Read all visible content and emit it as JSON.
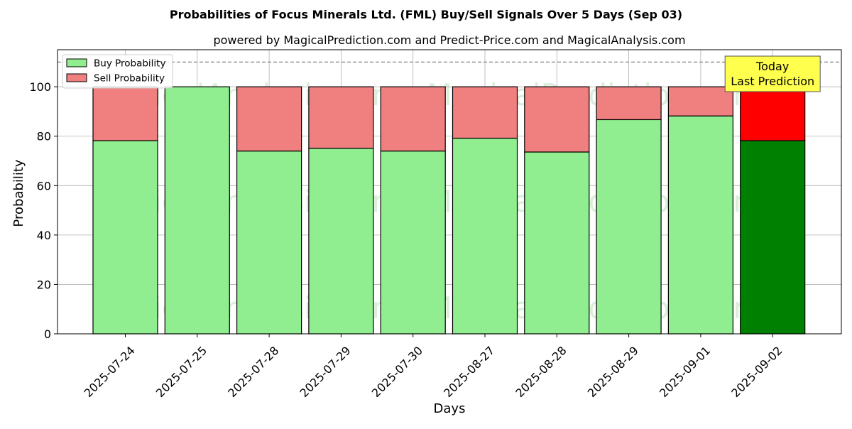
{
  "chart_data": {
    "type": "bar",
    "stacked": true,
    "title": "Probabilities of Focus Minerals Ltd. (FML) Buy/Sell Signals Over 5 Days (Sep 03)",
    "subtitle": "powered by MagicalPrediction.com and Predict-Price.com and MagicalAnalysis.com",
    "xlabel": "Days",
    "ylabel": "Probability",
    "ylim": [
      0,
      115
    ],
    "yticks": [
      0,
      20,
      40,
      60,
      80,
      100
    ],
    "grid": true,
    "legend_position": "top-left",
    "reference_line": 110,
    "categories": [
      "2025-07-24",
      "2025-07-25",
      "2025-07-28",
      "2025-07-29",
      "2025-07-30",
      "2025-08-27",
      "2025-08-28",
      "2025-08-29",
      "2025-09-01",
      "2025-09-02"
    ],
    "series": [
      {
        "name": "Buy Probability",
        "color": "#90ee90",
        "highlight_color": "#008000",
        "values": [
          78.2,
          100,
          74.0,
          75.1,
          74.0,
          79.2,
          73.6,
          86.7,
          88.2,
          78.2
        ]
      },
      {
        "name": "Sell Probability",
        "color": "#f08080",
        "highlight_color": "#ff0000",
        "values": [
          21.8,
          0,
          26.0,
          24.9,
          26.0,
          20.8,
          26.4,
          13.3,
          11.8,
          21.8
        ]
      }
    ],
    "annotation": {
      "line1": "Today",
      "line2": "Last Prediction",
      "background": "#ffff4d"
    },
    "watermarks": [
      "MagicalAnalysis.com",
      "MagicalPrediction.com"
    ]
  }
}
